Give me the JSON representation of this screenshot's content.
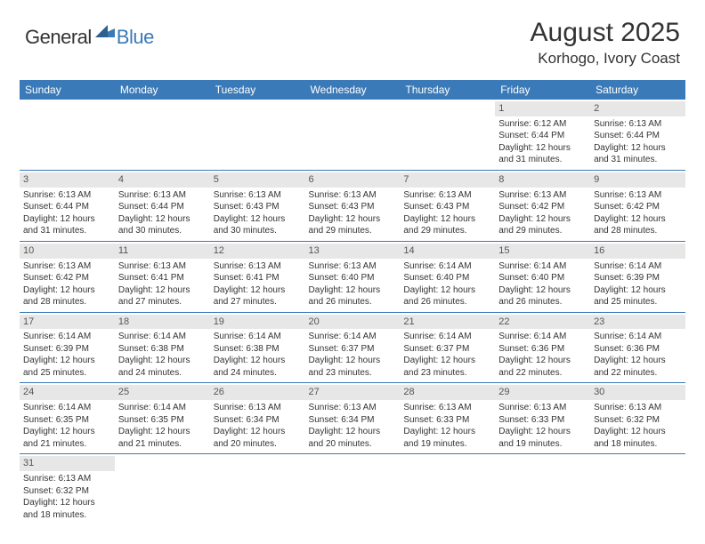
{
  "logo": {
    "general": "General",
    "blue": "Blue"
  },
  "title": "August 2025",
  "location": "Korhogo, Ivory Coast",
  "colors": {
    "header_bg": "#3a7ab8",
    "header_text": "#ffffff",
    "daynum_bg": "#e7e7e7",
    "daynum_text": "#555555",
    "body_text": "#333333",
    "divider": "#3a7ab8"
  },
  "typography": {
    "title_fontsize": 30,
    "location_fontsize": 17,
    "weekday_fontsize": 12,
    "cell_fontsize": 10
  },
  "weekdays": [
    "Sunday",
    "Monday",
    "Tuesday",
    "Wednesday",
    "Thursday",
    "Friday",
    "Saturday"
  ],
  "weeks": [
    [
      null,
      null,
      null,
      null,
      null,
      {
        "n": "1",
        "sr": "Sunrise: 6:12 AM",
        "ss": "Sunset: 6:44 PM",
        "d1": "Daylight: 12 hours",
        "d2": "and 31 minutes."
      },
      {
        "n": "2",
        "sr": "Sunrise: 6:13 AM",
        "ss": "Sunset: 6:44 PM",
        "d1": "Daylight: 12 hours",
        "d2": "and 31 minutes."
      }
    ],
    [
      {
        "n": "3",
        "sr": "Sunrise: 6:13 AM",
        "ss": "Sunset: 6:44 PM",
        "d1": "Daylight: 12 hours",
        "d2": "and 31 minutes."
      },
      {
        "n": "4",
        "sr": "Sunrise: 6:13 AM",
        "ss": "Sunset: 6:44 PM",
        "d1": "Daylight: 12 hours",
        "d2": "and 30 minutes."
      },
      {
        "n": "5",
        "sr": "Sunrise: 6:13 AM",
        "ss": "Sunset: 6:43 PM",
        "d1": "Daylight: 12 hours",
        "d2": "and 30 minutes."
      },
      {
        "n": "6",
        "sr": "Sunrise: 6:13 AM",
        "ss": "Sunset: 6:43 PM",
        "d1": "Daylight: 12 hours",
        "d2": "and 29 minutes."
      },
      {
        "n": "7",
        "sr": "Sunrise: 6:13 AM",
        "ss": "Sunset: 6:43 PM",
        "d1": "Daylight: 12 hours",
        "d2": "and 29 minutes."
      },
      {
        "n": "8",
        "sr": "Sunrise: 6:13 AM",
        "ss": "Sunset: 6:42 PM",
        "d1": "Daylight: 12 hours",
        "d2": "and 29 minutes."
      },
      {
        "n": "9",
        "sr": "Sunrise: 6:13 AM",
        "ss": "Sunset: 6:42 PM",
        "d1": "Daylight: 12 hours",
        "d2": "and 28 minutes."
      }
    ],
    [
      {
        "n": "10",
        "sr": "Sunrise: 6:13 AM",
        "ss": "Sunset: 6:42 PM",
        "d1": "Daylight: 12 hours",
        "d2": "and 28 minutes."
      },
      {
        "n": "11",
        "sr": "Sunrise: 6:13 AM",
        "ss": "Sunset: 6:41 PM",
        "d1": "Daylight: 12 hours",
        "d2": "and 27 minutes."
      },
      {
        "n": "12",
        "sr": "Sunrise: 6:13 AM",
        "ss": "Sunset: 6:41 PM",
        "d1": "Daylight: 12 hours",
        "d2": "and 27 minutes."
      },
      {
        "n": "13",
        "sr": "Sunrise: 6:13 AM",
        "ss": "Sunset: 6:40 PM",
        "d1": "Daylight: 12 hours",
        "d2": "and 26 minutes."
      },
      {
        "n": "14",
        "sr": "Sunrise: 6:14 AM",
        "ss": "Sunset: 6:40 PM",
        "d1": "Daylight: 12 hours",
        "d2": "and 26 minutes."
      },
      {
        "n": "15",
        "sr": "Sunrise: 6:14 AM",
        "ss": "Sunset: 6:40 PM",
        "d1": "Daylight: 12 hours",
        "d2": "and 26 minutes."
      },
      {
        "n": "16",
        "sr": "Sunrise: 6:14 AM",
        "ss": "Sunset: 6:39 PM",
        "d1": "Daylight: 12 hours",
        "d2": "and 25 minutes."
      }
    ],
    [
      {
        "n": "17",
        "sr": "Sunrise: 6:14 AM",
        "ss": "Sunset: 6:39 PM",
        "d1": "Daylight: 12 hours",
        "d2": "and 25 minutes."
      },
      {
        "n": "18",
        "sr": "Sunrise: 6:14 AM",
        "ss": "Sunset: 6:38 PM",
        "d1": "Daylight: 12 hours",
        "d2": "and 24 minutes."
      },
      {
        "n": "19",
        "sr": "Sunrise: 6:14 AM",
        "ss": "Sunset: 6:38 PM",
        "d1": "Daylight: 12 hours",
        "d2": "and 24 minutes."
      },
      {
        "n": "20",
        "sr": "Sunrise: 6:14 AM",
        "ss": "Sunset: 6:37 PM",
        "d1": "Daylight: 12 hours",
        "d2": "and 23 minutes."
      },
      {
        "n": "21",
        "sr": "Sunrise: 6:14 AM",
        "ss": "Sunset: 6:37 PM",
        "d1": "Daylight: 12 hours",
        "d2": "and 23 minutes."
      },
      {
        "n": "22",
        "sr": "Sunrise: 6:14 AM",
        "ss": "Sunset: 6:36 PM",
        "d1": "Daylight: 12 hours",
        "d2": "and 22 minutes."
      },
      {
        "n": "23",
        "sr": "Sunrise: 6:14 AM",
        "ss": "Sunset: 6:36 PM",
        "d1": "Daylight: 12 hours",
        "d2": "and 22 minutes."
      }
    ],
    [
      {
        "n": "24",
        "sr": "Sunrise: 6:14 AM",
        "ss": "Sunset: 6:35 PM",
        "d1": "Daylight: 12 hours",
        "d2": "and 21 minutes."
      },
      {
        "n": "25",
        "sr": "Sunrise: 6:14 AM",
        "ss": "Sunset: 6:35 PM",
        "d1": "Daylight: 12 hours",
        "d2": "and 21 minutes."
      },
      {
        "n": "26",
        "sr": "Sunrise: 6:13 AM",
        "ss": "Sunset: 6:34 PM",
        "d1": "Daylight: 12 hours",
        "d2": "and 20 minutes."
      },
      {
        "n": "27",
        "sr": "Sunrise: 6:13 AM",
        "ss": "Sunset: 6:34 PM",
        "d1": "Daylight: 12 hours",
        "d2": "and 20 minutes."
      },
      {
        "n": "28",
        "sr": "Sunrise: 6:13 AM",
        "ss": "Sunset: 6:33 PM",
        "d1": "Daylight: 12 hours",
        "d2": "and 19 minutes."
      },
      {
        "n": "29",
        "sr": "Sunrise: 6:13 AM",
        "ss": "Sunset: 6:33 PM",
        "d1": "Daylight: 12 hours",
        "d2": "and 19 minutes."
      },
      {
        "n": "30",
        "sr": "Sunrise: 6:13 AM",
        "ss": "Sunset: 6:32 PM",
        "d1": "Daylight: 12 hours",
        "d2": "and 18 minutes."
      }
    ],
    [
      {
        "n": "31",
        "sr": "Sunrise: 6:13 AM",
        "ss": "Sunset: 6:32 PM",
        "d1": "Daylight: 12 hours",
        "d2": "and 18 minutes."
      },
      null,
      null,
      null,
      null,
      null,
      null
    ]
  ]
}
